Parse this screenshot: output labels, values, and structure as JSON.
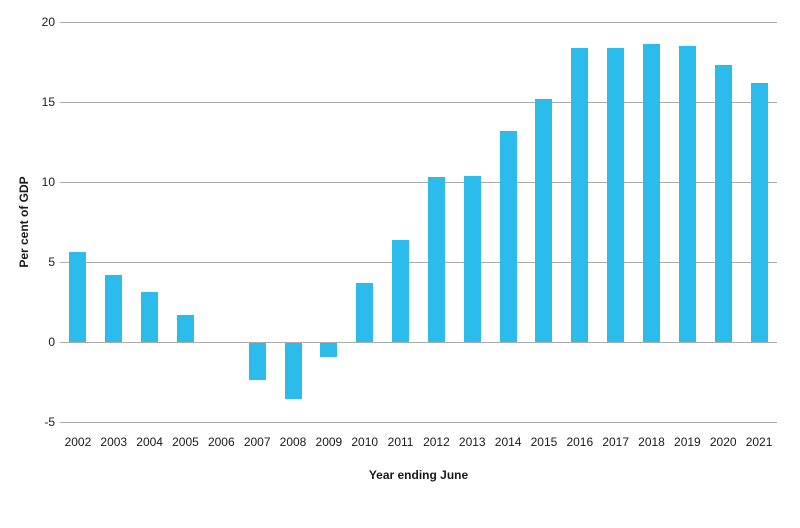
{
  "chart_data": {
    "type": "bar",
    "title": "",
    "categories": [
      "2002",
      "2003",
      "2004",
      "2005",
      "2006",
      "2007",
      "2008",
      "2009",
      "2010",
      "2011",
      "2012",
      "2013",
      "2014",
      "2015",
      "2016",
      "2017",
      "2018",
      "2019",
      "2020",
      "2021"
    ],
    "values": [
      5.6,
      4.2,
      3.1,
      1.7,
      0.0,
      -2.3,
      -3.5,
      -0.9,
      3.7,
      6.4,
      10.3,
      10.4,
      13.2,
      15.2,
      18.4,
      18.4,
      18.6,
      18.5,
      17.3,
      16.2
    ],
    "xlabel": "Year ending June",
    "ylabel": "Per cent of GDP",
    "ylim": [
      -5,
      20
    ],
    "yticks": [
      20,
      15,
      10,
      5,
      0,
      -5
    ],
    "grid": true,
    "legend": false,
    "bar_color": "#2bbcec",
    "gridline_color": "#ababab",
    "text_color": "#1a1a1a"
  }
}
